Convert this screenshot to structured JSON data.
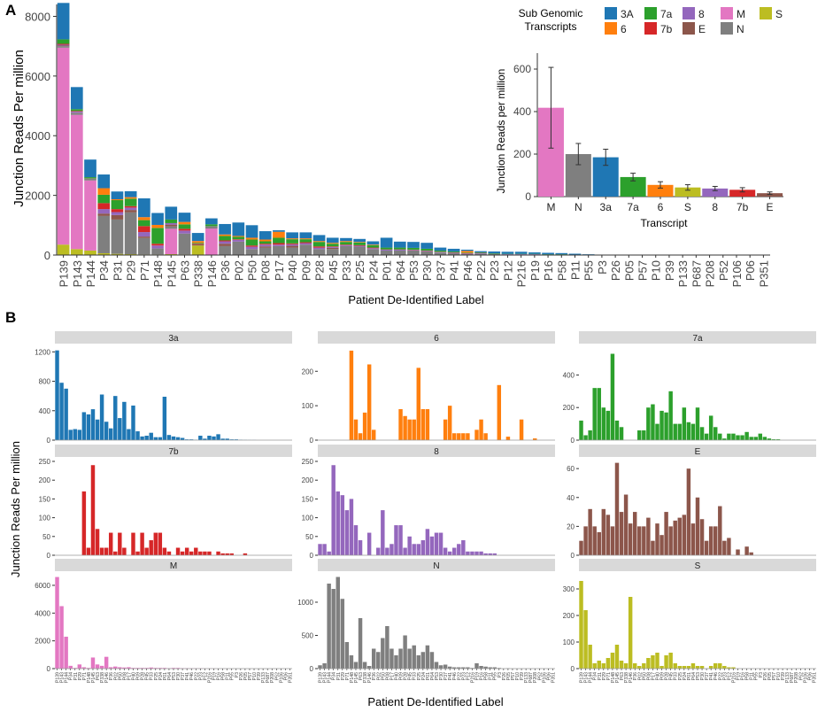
{
  "colors": {
    "3A": "#1f77b4",
    "6": "#ff7f0e",
    "7a": "#2ca02c",
    "7b": "#d62728",
    "8": "#9467bd",
    "E": "#8c564b",
    "M": "#e377c2",
    "N": "#7f7f7f",
    "S": "#bcbd22",
    "strip": "#d9d9d9",
    "axis": "#333333",
    "text": "#222222",
    "tick_text": "#444444"
  },
  "panel_a": {
    "label": "A",
    "ylabel": "Junction Reads Per million",
    "xlabel": "Patient De-Identified Label",
    "legend_title_line1": "Sub Genomic",
    "legend_title_line2": "Transcripts",
    "legend": [
      "3A",
      "7a",
      "8",
      "M",
      "S",
      "6",
      "7b",
      "E",
      "N"
    ],
    "yticks": [
      0,
      2000,
      4000,
      6000,
      8000
    ],
    "ylim": [
      0,
      8400
    ],
    "patients": [
      "P139",
      "P143",
      "P144",
      "P34",
      "P31",
      "P29",
      "P71",
      "P148",
      "P145",
      "P63",
      "P338",
      "P146",
      "P36",
      "P02",
      "P50",
      "P08",
      "P17",
      "P40",
      "P09",
      "P28",
      "P45",
      "P33",
      "P25",
      "P24",
      "P01",
      "P64",
      "P53",
      "P30",
      "P37",
      "P41",
      "P46",
      "P22",
      "P23",
      "P12",
      "P216",
      "P19",
      "P16",
      "P58",
      "P11",
      "P55",
      "P3",
      "P26",
      "P05",
      "P57",
      "P10",
      "P39",
      "P133",
      "P687",
      "P208",
      "P52",
      "P106",
      "P06",
      "P351"
    ],
    "stack_order": [
      "S",
      "M",
      "N",
      "E",
      "8",
      "7b",
      "7a",
      "6",
      "3A"
    ],
    "components": {
      "S": [
        350,
        200,
        150,
        60,
        40,
        30,
        20,
        20,
        30,
        20,
        320,
        10,
        0,
        0,
        0,
        0,
        0,
        0,
        0,
        0,
        0,
        0,
        0,
        0,
        0,
        0,
        0,
        0,
        0,
        0,
        0,
        0,
        0,
        0,
        0,
        0,
        0,
        0,
        0,
        0,
        0,
        0,
        0,
        0,
        0,
        0,
        0,
        0,
        0,
        0,
        0,
        0,
        0
      ],
      "M": [
        6600,
        4500,
        2350,
        0,
        0,
        0,
        0,
        0,
        850,
        0,
        0,
        880,
        0,
        0,
        0,
        0,
        0,
        0,
        0,
        0,
        0,
        0,
        0,
        0,
        0,
        0,
        0,
        0,
        0,
        0,
        0,
        0,
        0,
        0,
        0,
        0,
        0,
        0,
        0,
        0,
        0,
        0,
        0,
        0,
        0,
        0,
        0,
        0,
        0,
        0,
        0,
        0,
        0
      ],
      "N": [
        50,
        60,
        60,
        1250,
        1150,
        1400,
        550,
        200,
        80,
        700,
        0,
        80,
        300,
        450,
        200,
        250,
        300,
        250,
        350,
        200,
        200,
        300,
        280,
        200,
        150,
        150,
        150,
        120,
        80,
        60,
        30,
        40,
        30,
        20,
        20,
        20,
        10,
        10,
        10,
        0,
        0,
        0,
        0,
        0,
        0,
        0,
        0,
        0,
        0,
        0,
        0,
        0,
        0
      ],
      "E": [
        20,
        10,
        10,
        80,
        150,
        80,
        50,
        0,
        60,
        0,
        40,
        0,
        80,
        0,
        0,
        40,
        0,
        60,
        0,
        0,
        40,
        0,
        0,
        0,
        0,
        0,
        0,
        0,
        0,
        0,
        0,
        0,
        0,
        0,
        0,
        0,
        0,
        0,
        0,
        0,
        0,
        0,
        0,
        0,
        0,
        0,
        0,
        0,
        0,
        0,
        0,
        0,
        0
      ],
      "8": [
        30,
        40,
        0,
        150,
        100,
        80,
        150,
        100,
        50,
        100,
        0,
        0,
        80,
        60,
        80,
        60,
        50,
        50,
        50,
        50,
        30,
        30,
        30,
        30,
        30,
        30,
        20,
        20,
        20,
        20,
        20,
        20,
        10,
        10,
        10,
        10,
        5,
        5,
        0,
        0,
        0,
        0,
        0,
        0,
        0,
        0,
        0,
        0,
        0,
        0,
        0,
        0,
        0
      ],
      "7b": [
        30,
        20,
        0,
        200,
        100,
        50,
        200,
        60,
        0,
        60,
        20,
        0,
        30,
        20,
        40,
        30,
        50,
        30,
        30,
        40,
        20,
        20,
        20,
        20,
        10,
        10,
        10,
        10,
        10,
        10,
        10,
        10,
        0,
        0,
        0,
        0,
        0,
        0,
        0,
        0,
        0,
        0,
        0,
        0,
        0,
        0,
        0,
        0,
        0,
        0,
        0,
        0,
        0
      ],
      "7a": [
        150,
        60,
        40,
        280,
        300,
        250,
        200,
        530,
        120,
        150,
        30,
        60,
        150,
        80,
        200,
        80,
        180,
        140,
        100,
        150,
        90,
        90,
        90,
        80,
        60,
        60,
        60,
        60,
        40,
        30,
        20,
        20,
        20,
        10,
        10,
        10,
        10,
        10,
        5,
        5,
        0,
        0,
        0,
        0,
        0,
        0,
        0,
        0,
        0,
        0,
        0,
        0,
        0
      ],
      "6": [
        0,
        0,
        0,
        220,
        30,
        50,
        100,
        100,
        0,
        80,
        60,
        0,
        50,
        30,
        60,
        60,
        200,
        30,
        30,
        30,
        30,
        30,
        20,
        20,
        0,
        0,
        0,
        0,
        0,
        0,
        60,
        0,
        0,
        0,
        0,
        0,
        0,
        0,
        0,
        0,
        0,
        0,
        0,
        0,
        0,
        0,
        0,
        0,
        0,
        0,
        0,
        0,
        0
      ],
      "3A": [
        1220,
        740,
        590,
        460,
        260,
        200,
        630,
        400,
        430,
        310,
        270,
        200,
        350,
        450,
        420,
        280,
        50,
        200,
        200,
        200,
        170,
        100,
        100,
        110,
        330,
        200,
        200,
        200,
        100,
        90,
        40,
        40,
        60,
        70,
        70,
        50,
        50,
        40,
        30,
        20,
        10,
        10,
        5,
        5,
        5,
        5,
        3,
        3,
        2,
        2,
        2,
        2,
        2
      ]
    }
  },
  "inset": {
    "ylabel": "Junction Reads per million",
    "xlabel": "Transcript",
    "categories": [
      "M",
      "N",
      "3a",
      "7a",
      "6",
      "S",
      "8",
      "7b",
      "E"
    ],
    "values": [
      418,
      200,
      185,
      92,
      55,
      43,
      38,
      32,
      16
    ],
    "errors": [
      190,
      50,
      38,
      18,
      15,
      13,
      10,
      10,
      6
    ],
    "color_keys": [
      "M",
      "N",
      "3A",
      "7a",
      "6",
      "S",
      "8",
      "7b",
      "E"
    ],
    "yticks": [
      0,
      200,
      400,
      600
    ],
    "ylim": [
      0,
      650
    ]
  },
  "panel_b": {
    "label": "B",
    "ylabel": "Junction Reads Per million",
    "xlabel": "Patient De-Identified Label",
    "facets": [
      {
        "title": "3a",
        "color_key": "3A",
        "yticks": [
          0,
          400,
          800,
          1200
        ],
        "ymax": 1240,
        "values": [
          1220,
          780,
          700,
          140,
          150,
          140,
          380,
          350,
          420,
          280,
          620,
          250,
          160,
          600,
          300,
          520,
          150,
          470,
          120,
          50,
          60,
          100,
          40,
          40,
          590,
          70,
          50,
          40,
          30,
          10,
          10,
          5,
          60,
          20,
          60,
          50,
          80,
          20,
          20,
          10,
          10,
          5,
          3,
          2,
          2,
          0,
          0,
          0,
          0,
          0,
          0,
          0,
          0
        ]
      },
      {
        "title": "6",
        "color_key": "6",
        "yticks": [
          0,
          100,
          200
        ],
        "ymax": 265,
        "values": [
          0,
          0,
          0,
          0,
          0,
          0,
          0,
          260,
          60,
          20,
          80,
          220,
          30,
          0,
          0,
          0,
          0,
          0,
          90,
          70,
          60,
          60,
          210,
          90,
          90,
          0,
          0,
          0,
          60,
          100,
          20,
          20,
          20,
          20,
          0,
          30,
          60,
          20,
          0,
          0,
          160,
          0,
          10,
          0,
          0,
          60,
          0,
          0,
          5,
          0,
          0,
          0,
          0
        ]
      },
      {
        "title": "7a",
        "color_key": "7a",
        "yticks": [
          0,
          200,
          400
        ],
        "ymax": 560,
        "values": [
          120,
          30,
          60,
          320,
          320,
          200,
          180,
          530,
          120,
          80,
          0,
          0,
          0,
          60,
          60,
          200,
          220,
          100,
          180,
          170,
          300,
          100,
          100,
          200,
          110,
          100,
          200,
          80,
          40,
          150,
          80,
          40,
          10,
          40,
          40,
          30,
          30,
          50,
          20,
          20,
          40,
          20,
          10,
          5,
          5,
          0,
          0,
          0,
          0,
          0,
          0,
          0,
          0
        ]
      },
      {
        "title": "7b",
        "color_key": "7b",
        "yticks": [
          0,
          50,
          100,
          150,
          200,
          250
        ],
        "ymax": 250,
        "values": [
          0,
          0,
          0,
          0,
          0,
          0,
          170,
          20,
          240,
          70,
          20,
          20,
          60,
          10,
          60,
          20,
          0,
          60,
          10,
          60,
          20,
          40,
          60,
          60,
          20,
          10,
          0,
          20,
          10,
          20,
          10,
          20,
          10,
          10,
          10,
          0,
          10,
          5,
          5,
          5,
          0,
          0,
          5,
          0,
          0,
          0,
          0,
          0,
          0,
          0,
          0,
          0,
          0
        ]
      },
      {
        "title": "8",
        "color_key": "8",
        "yticks": [
          0,
          50,
          100,
          150,
          200,
          250
        ],
        "ymax": 250,
        "values": [
          30,
          30,
          10,
          240,
          170,
          160,
          120,
          150,
          80,
          40,
          0,
          60,
          0,
          20,
          120,
          20,
          30,
          80,
          80,
          20,
          50,
          30,
          30,
          40,
          70,
          50,
          60,
          60,
          20,
          10,
          20,
          30,
          40,
          10,
          10,
          10,
          10,
          5,
          5,
          5,
          0,
          0,
          0,
          0,
          0,
          0,
          0,
          0,
          0,
          0,
          0,
          0,
          0
        ]
      },
      {
        "title": "E",
        "color_key": "E",
        "yticks": [
          0,
          20,
          40,
          60
        ],
        "ymax": 65,
        "values": [
          10,
          20,
          32,
          20,
          16,
          32,
          28,
          20,
          64,
          30,
          42,
          22,
          30,
          20,
          20,
          26,
          10,
          22,
          14,
          30,
          20,
          24,
          26,
          28,
          60,
          22,
          40,
          25,
          10,
          20,
          20,
          34,
          10,
          12,
          0,
          4,
          0,
          6,
          2,
          0,
          0,
          0,
          0,
          0,
          0,
          0,
          0,
          0,
          0,
          0,
          0,
          0,
          0
        ]
      },
      {
        "title": "M",
        "color_key": "M",
        "yticks": [
          0,
          2000,
          4000,
          6000
        ],
        "ymax": 6700,
        "values": [
          6600,
          4500,
          2300,
          200,
          50,
          300,
          100,
          50,
          800,
          300,
          200,
          850,
          100,
          150,
          100,
          80,
          100,
          50,
          50,
          50,
          50,
          80,
          50,
          50,
          50,
          30,
          50,
          50,
          30,
          30,
          20,
          20,
          20,
          10,
          10,
          10,
          5,
          5,
          5,
          0,
          0,
          0,
          0,
          0,
          0,
          0,
          0,
          0,
          0,
          0,
          0,
          0,
          0
        ]
      },
      {
        "title": "N",
        "color_key": "N",
        "yticks": [
          0,
          500,
          1000
        ],
        "ymax": 1400,
        "values": [
          50,
          80,
          1280,
          1200,
          1380,
          1050,
          400,
          200,
          100,
          760,
          100,
          40,
          300,
          250,
          460,
          640,
          300,
          200,
          300,
          500,
          300,
          350,
          200,
          250,
          350,
          250,
          100,
          50,
          60,
          30,
          20,
          20,
          20,
          20,
          10,
          80,
          40,
          30,
          20,
          20,
          10,
          0,
          5,
          0,
          0,
          0,
          0,
          0,
          0,
          0,
          0,
          0,
          0
        ]
      },
      {
        "title": "S",
        "color_key": "S",
        "yticks": [
          0,
          100,
          200,
          300
        ],
        "ymax": 350,
        "values": [
          330,
          220,
          90,
          20,
          30,
          20,
          40,
          60,
          90,
          30,
          20,
          270,
          20,
          10,
          20,
          40,
          50,
          60,
          10,
          50,
          60,
          20,
          10,
          10,
          10,
          20,
          10,
          10,
          0,
          10,
          20,
          20,
          10,
          5,
          5,
          0,
          0,
          0,
          0,
          0,
          0,
          0,
          0,
          0,
          0,
          0,
          0,
          0,
          0,
          0,
          0,
          0,
          0
        ]
      }
    ]
  }
}
